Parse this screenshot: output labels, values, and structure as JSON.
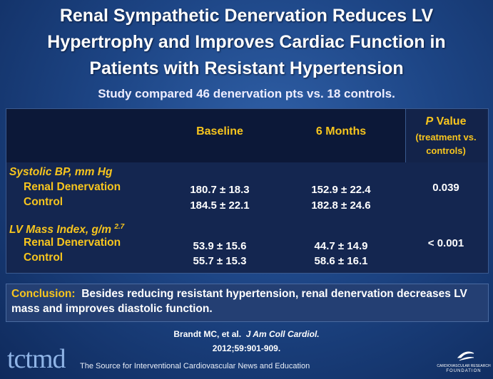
{
  "header": {
    "title": [
      "Renal Sympathetic Denervation Reduces LV",
      "Hypertrophy and Improves Cardiac Function in",
      "Patients with Resistant Hypertension"
    ],
    "subtitle": "Study compared 46 denervation pts vs. 18 controls."
  },
  "table": {
    "columns": [
      "Baseline",
      "6 Months"
    ],
    "p_header": {
      "p": "P",
      "value": "Value",
      "note": "(treatment vs. controls)"
    },
    "sections": [
      {
        "label": "Systolic BP, mm Hg",
        "rows": [
          {
            "name": "Renal Denervation",
            "baseline": "180.7 ± 18.3",
            "six_months": "152.9 ± 22.4"
          },
          {
            "name": "Control",
            "baseline": "184.5 ± 22.1",
            "six_months": "182.8 ± 24.6"
          }
        ],
        "p_value": "0.039"
      },
      {
        "label": "LV Mass Index, g/m",
        "label_sup": "2.7",
        "rows": [
          {
            "name": "Renal Denervation",
            "baseline": "53.9 ± 15.6",
            "six_months": "44.7 ± 14.9"
          },
          {
            "name": "Control",
            "baseline": "55.7 ± 15.3",
            "six_months": "58.6 ± 16.1"
          }
        ],
        "p_value": "< 0.001"
      }
    ]
  },
  "conclusion": {
    "label": "Conclusion:",
    "text": "Besides reducing resistant hypertension, renal denervation decreases LV mass and improves diastolic function."
  },
  "citation": {
    "authors": "Brandt MC, et al.",
    "journal": "J Am Coll Cardiol.",
    "detail": "2012;59:901-909."
  },
  "footer": {
    "logo": "tctmd",
    "tagline": "The Source for Interventional Cardiovascular News and Education",
    "foundation": [
      "CARDIOVASCULAR RESEARCH",
      "FOUNDATION"
    ]
  }
}
